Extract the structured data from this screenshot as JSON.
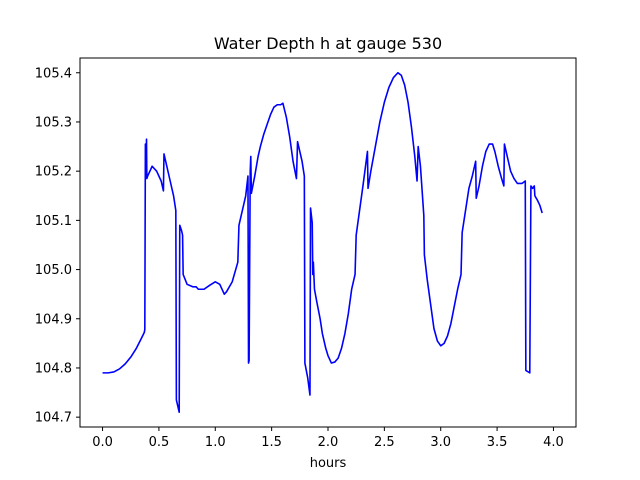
{
  "chart_data": {
    "type": "line",
    "title": "Water Depth h at gauge 530",
    "xlabel": "hours",
    "ylabel": "",
    "xlim": [
      -0.2,
      4.2
    ],
    "ylim": [
      104.68,
      105.43
    ],
    "xticks": [
      0.0,
      0.5,
      1.0,
      1.5,
      2.0,
      2.5,
      3.0,
      3.5,
      4.0
    ],
    "xtick_labels": [
      "0.0",
      "0.5",
      "1.0",
      "1.5",
      "2.0",
      "2.5",
      "3.0",
      "3.5",
      "4.0"
    ],
    "yticks": [
      104.7,
      104.8,
      104.9,
      105.0,
      105.1,
      105.2,
      105.3,
      105.4
    ],
    "ytick_labels": [
      "104.7",
      "104.8",
      "104.9",
      "105.0",
      "105.1",
      "105.2",
      "105.3",
      "105.4"
    ],
    "grid": false,
    "series": [
      {
        "color": "#0000ff",
        "points": [
          [
            0.0,
            104.79
          ],
          [
            0.05,
            104.79
          ],
          [
            0.1,
            104.792
          ],
          [
            0.15,
            104.798
          ],
          [
            0.2,
            104.808
          ],
          [
            0.25,
            104.822
          ],
          [
            0.3,
            104.84
          ],
          [
            0.34,
            104.858
          ],
          [
            0.37,
            104.872
          ],
          [
            0.375,
            104.878
          ],
          [
            0.38,
            105.255
          ],
          [
            0.385,
            105.19
          ],
          [
            0.39,
            105.265
          ],
          [
            0.393,
            105.185
          ],
          [
            0.4,
            105.19
          ],
          [
            0.44,
            105.21
          ],
          [
            0.48,
            105.2
          ],
          [
            0.52,
            105.18
          ],
          [
            0.54,
            105.16
          ],
          [
            0.545,
            105.235
          ],
          [
            0.57,
            105.21
          ],
          [
            0.6,
            105.18
          ],
          [
            0.63,
            105.15
          ],
          [
            0.65,
            105.12
          ],
          [
            0.655,
            104.735
          ],
          [
            0.67,
            104.72
          ],
          [
            0.68,
            104.71
          ],
          [
            0.685,
            105.09
          ],
          [
            0.7,
            105.08
          ],
          [
            0.71,
            105.07
          ],
          [
            0.715,
            104.99
          ],
          [
            0.75,
            104.97
          ],
          [
            0.8,
            104.965
          ],
          [
            0.83,
            104.965
          ],
          [
            0.85,
            104.96
          ],
          [
            0.9,
            104.96
          ],
          [
            0.95,
            104.968
          ],
          [
            1.0,
            104.975
          ],
          [
            1.04,
            104.97
          ],
          [
            1.08,
            104.95
          ],
          [
            1.1,
            104.955
          ],
          [
            1.15,
            104.975
          ],
          [
            1.2,
            105.015
          ],
          [
            1.21,
            105.09
          ],
          [
            1.24,
            105.12
          ],
          [
            1.27,
            105.15
          ],
          [
            1.29,
            105.19
          ],
          [
            1.295,
            104.81
          ],
          [
            1.3,
            104.815
          ],
          [
            1.31,
            105.2
          ],
          [
            1.315,
            105.23
          ],
          [
            1.32,
            105.155
          ],
          [
            1.35,
            105.19
          ],
          [
            1.38,
            105.23
          ],
          [
            1.4,
            105.25
          ],
          [
            1.43,
            105.275
          ],
          [
            1.46,
            105.295
          ],
          [
            1.49,
            105.315
          ],
          [
            1.52,
            105.33
          ],
          [
            1.55,
            105.335
          ],
          [
            1.58,
            105.335
          ],
          [
            1.6,
            105.338
          ],
          [
            1.63,
            105.31
          ],
          [
            1.66,
            105.27
          ],
          [
            1.69,
            105.22
          ],
          [
            1.72,
            105.185
          ],
          [
            1.73,
            105.26
          ],
          [
            1.77,
            105.22
          ],
          [
            1.79,
            105.19
          ],
          [
            1.795,
            104.81
          ],
          [
            1.82,
            104.78
          ],
          [
            1.84,
            104.745
          ],
          [
            1.845,
            105.125
          ],
          [
            1.86,
            105.095
          ],
          [
            1.865,
            104.99
          ],
          [
            1.87,
            105.015
          ],
          [
            1.88,
            104.96
          ],
          [
            1.9,
            104.935
          ],
          [
            1.93,
            104.9
          ],
          [
            1.95,
            104.87
          ],
          [
            1.98,
            104.84
          ],
          [
            2.0,
            104.825
          ],
          [
            2.03,
            104.81
          ],
          [
            2.06,
            104.812
          ],
          [
            2.09,
            104.82
          ],
          [
            2.12,
            104.84
          ],
          [
            2.15,
            104.87
          ],
          [
            2.18,
            104.91
          ],
          [
            2.21,
            104.96
          ],
          [
            2.24,
            104.99
          ],
          [
            2.25,
            105.07
          ],
          [
            2.28,
            105.12
          ],
          [
            2.31,
            105.17
          ],
          [
            2.35,
            105.24
          ],
          [
            2.355,
            105.165
          ],
          [
            2.38,
            105.2
          ],
          [
            2.42,
            105.25
          ],
          [
            2.46,
            105.3
          ],
          [
            2.5,
            105.34
          ],
          [
            2.54,
            105.37
          ],
          [
            2.58,
            105.39
          ],
          [
            2.62,
            105.4
          ],
          [
            2.65,
            105.395
          ],
          [
            2.68,
            105.375
          ],
          [
            2.71,
            105.34
          ],
          [
            2.74,
            105.29
          ],
          [
            2.77,
            105.23
          ],
          [
            2.79,
            105.18
          ],
          [
            2.8,
            105.25
          ],
          [
            2.82,
            105.21
          ],
          [
            2.85,
            105.11
          ],
          [
            2.855,
            105.03
          ],
          [
            2.88,
            104.98
          ],
          [
            2.91,
            104.93
          ],
          [
            2.94,
            104.88
          ],
          [
            2.97,
            104.855
          ],
          [
            3.0,
            104.845
          ],
          [
            3.03,
            104.85
          ],
          [
            3.06,
            104.865
          ],
          [
            3.09,
            104.89
          ],
          [
            3.12,
            104.925
          ],
          [
            3.15,
            104.96
          ],
          [
            3.18,
            104.99
          ],
          [
            3.19,
            105.075
          ],
          [
            3.22,
            105.12
          ],
          [
            3.25,
            105.165
          ],
          [
            3.28,
            105.19
          ],
          [
            3.31,
            105.22
          ],
          [
            3.315,
            105.145
          ],
          [
            3.34,
            105.17
          ],
          [
            3.37,
            105.21
          ],
          [
            3.4,
            105.24
          ],
          [
            3.43,
            105.255
          ],
          [
            3.46,
            105.255
          ],
          [
            3.48,
            105.24
          ],
          [
            3.51,
            105.21
          ],
          [
            3.54,
            105.185
          ],
          [
            3.56,
            105.17
          ],
          [
            3.565,
            105.255
          ],
          [
            3.59,
            105.23
          ],
          [
            3.62,
            105.2
          ],
          [
            3.65,
            105.185
          ],
          [
            3.68,
            105.175
          ],
          [
            3.72,
            105.175
          ],
          [
            3.75,
            105.18
          ],
          [
            3.755,
            104.795
          ],
          [
            3.79,
            104.79
          ],
          [
            3.8,
            105.17
          ],
          [
            3.815,
            105.165
          ],
          [
            3.83,
            105.17
          ],
          [
            3.835,
            105.15
          ],
          [
            3.86,
            105.14
          ],
          [
            3.88,
            105.13
          ],
          [
            3.9,
            105.115
          ]
        ]
      }
    ]
  }
}
